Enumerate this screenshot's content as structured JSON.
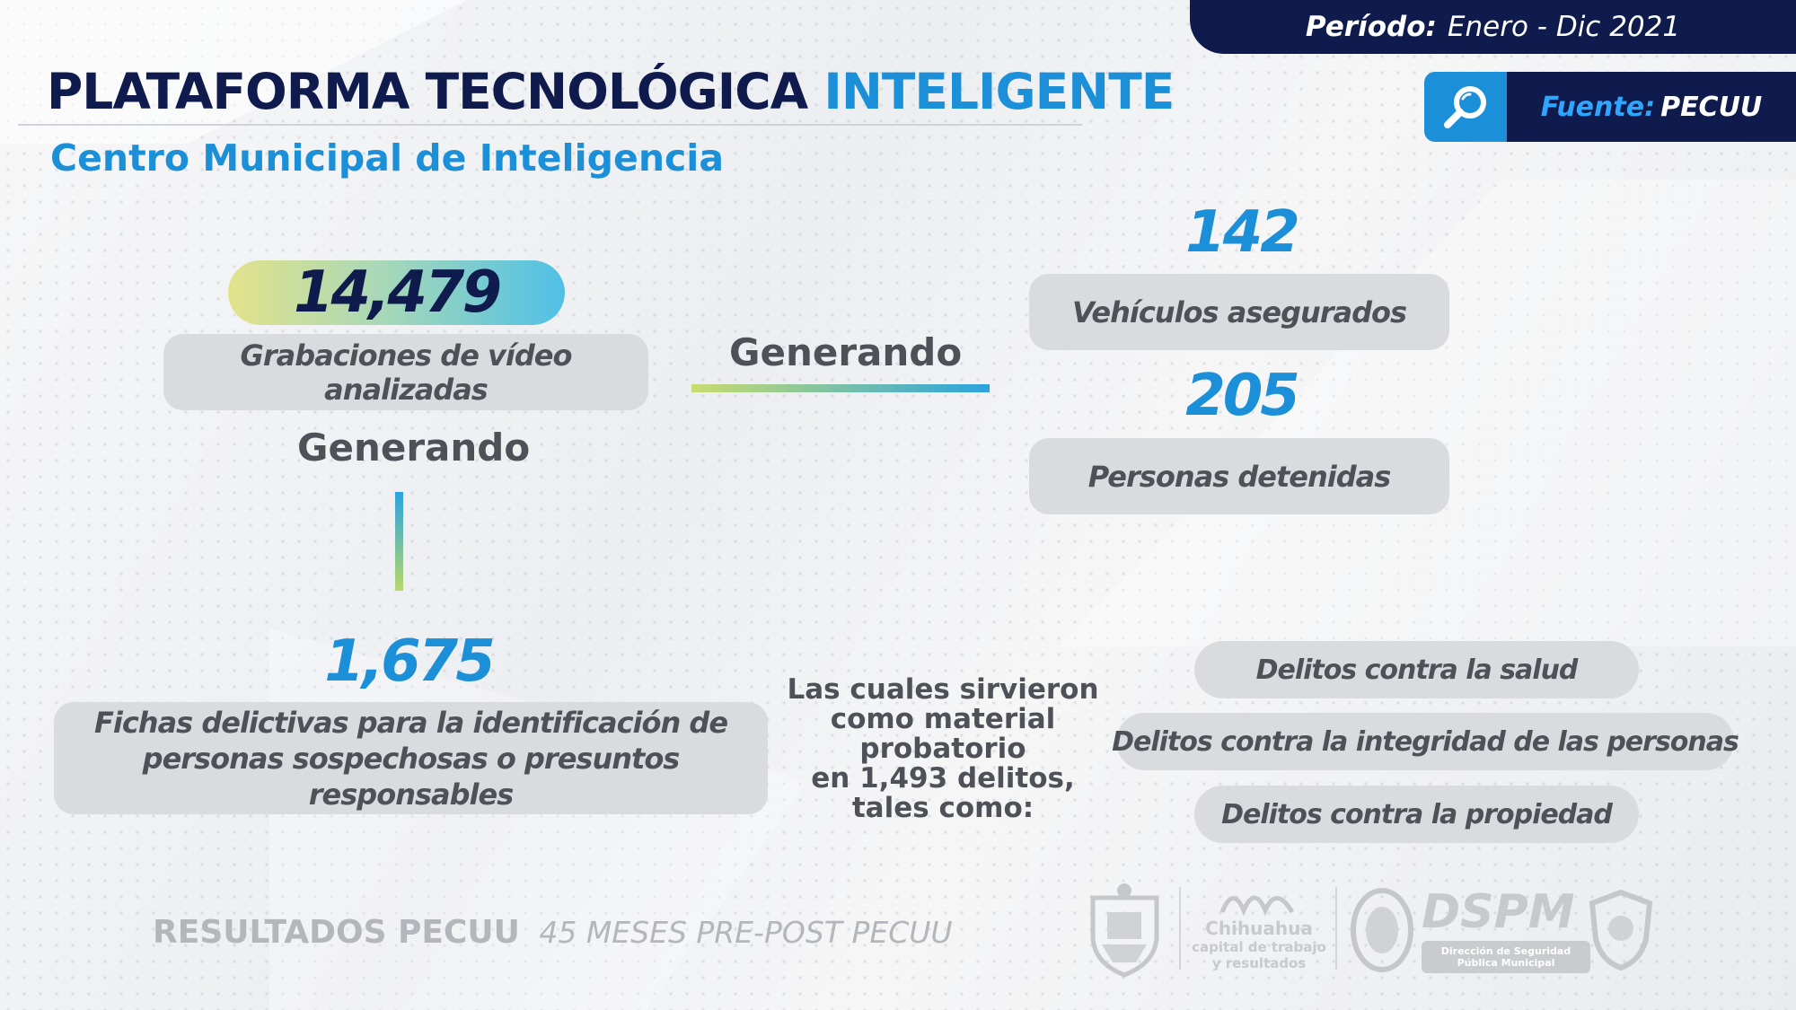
{
  "header": {
    "period_label": "Período:",
    "period_value": "Enero - Dic 2021",
    "title_main": "PLATAFORMA TECNOLÓGICA",
    "title_accent": "INTELIGENTE",
    "subtitle": "Centro Municipal de Inteligencia",
    "source_label": "Fuente:",
    "source_value": "PECUU"
  },
  "stats": {
    "recordings_value": "14,479",
    "recordings_label": "Grabaciones de vídeo analizadas",
    "generating_1": "Generando",
    "generating_2": "Generando",
    "vehicles_value": "142",
    "vehicles_label": "Vehículos asegurados",
    "detained_value": "205",
    "detained_label": "Personas detenidas",
    "records_value": "1,675",
    "records_label_line1": "Fichas delictivas para la identificación de",
    "records_label_line2": "personas sospechosas o presuntos responsables"
  },
  "evidence": {
    "line1": "Las cuales sirvieron",
    "line2": "como material",
    "line3": "probatorio",
    "line4": "en 1,493 delitos,",
    "line5": "tales como:",
    "crimes": [
      "Delitos contra la salud",
      "Delitos contra la integridad de las personas",
      "Delitos contra la propiedad"
    ]
  },
  "footer": {
    "results_label": "RESULTADOS PECUU",
    "results_period": "45 MESES PRE-POST PECUU"
  },
  "logos": {
    "city_line1": "Chihuahua",
    "city_line2": "capital de trabajo",
    "city_line3": "y resultados",
    "dspm": "DSPM",
    "dspm_line1": "Dirección de Seguridad",
    "dspm_line2": "Pública Municipal"
  },
  "colors": {
    "navy": "#0f1b4c",
    "accent_blue": "#1c8fd9",
    "box_gray": "#d9dbde",
    "text_gray": "#4e5258"
  }
}
